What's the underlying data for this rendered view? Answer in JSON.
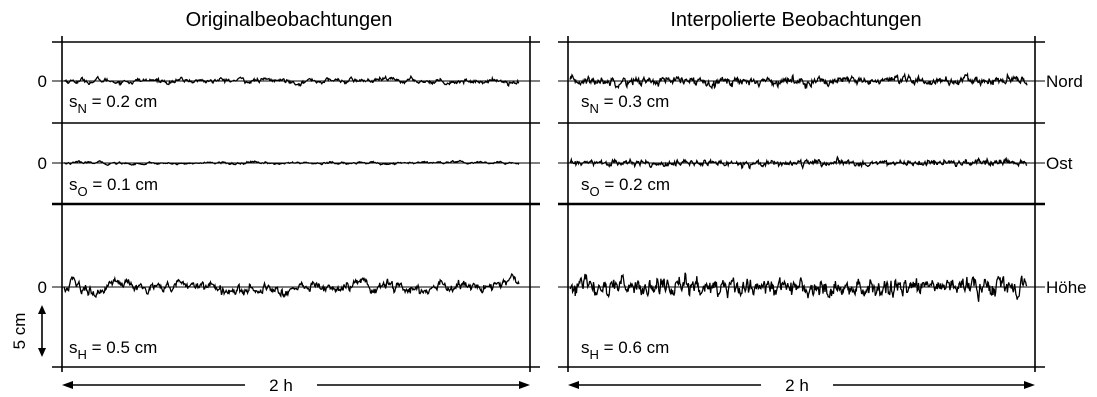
{
  "chart_data": {
    "type": "line",
    "titles": [
      "Originalbeobachtungen",
      "Interpolierte Beobachtungen"
    ],
    "components": [
      "Nord",
      "Ost",
      "Höhe"
    ],
    "zero_label": "0",
    "scale_bar_label": "5 cm",
    "scale_bar_cm": 5,
    "time_span_label": "2 h",
    "unit": "cm",
    "panels": [
      {
        "title": "Originalbeobachtungen",
        "series": [
          {
            "component": "Nord",
            "sd_symbol": "s",
            "sd_sub": "N",
            "sd_text": " = 0.2 cm",
            "sd": 0.2
          },
          {
            "component": "Ost",
            "sd_symbol": "s",
            "sd_sub": "O",
            "sd_text": " = 0.1 cm",
            "sd": 0.1
          },
          {
            "component": "Höhe",
            "sd_symbol": "s",
            "sd_sub": "H",
            "sd_text": " = 0.5 cm",
            "sd": 0.5
          }
        ]
      },
      {
        "title": "Interpolierte Beobachtungen",
        "series": [
          {
            "component": "Nord",
            "sd_symbol": "s",
            "sd_sub": "N",
            "sd_text": " = 0.3 cm",
            "sd": 0.3
          },
          {
            "component": "Ost",
            "sd_symbol": "s",
            "sd_sub": "O",
            "sd_text": " = 0.2 cm",
            "sd": 0.2
          },
          {
            "component": "Höhe",
            "sd_symbol": "s",
            "sd_sub": "H",
            "sd_text": " = 0.6 cm",
            "sd": 0.6
          }
        ]
      }
    ]
  }
}
